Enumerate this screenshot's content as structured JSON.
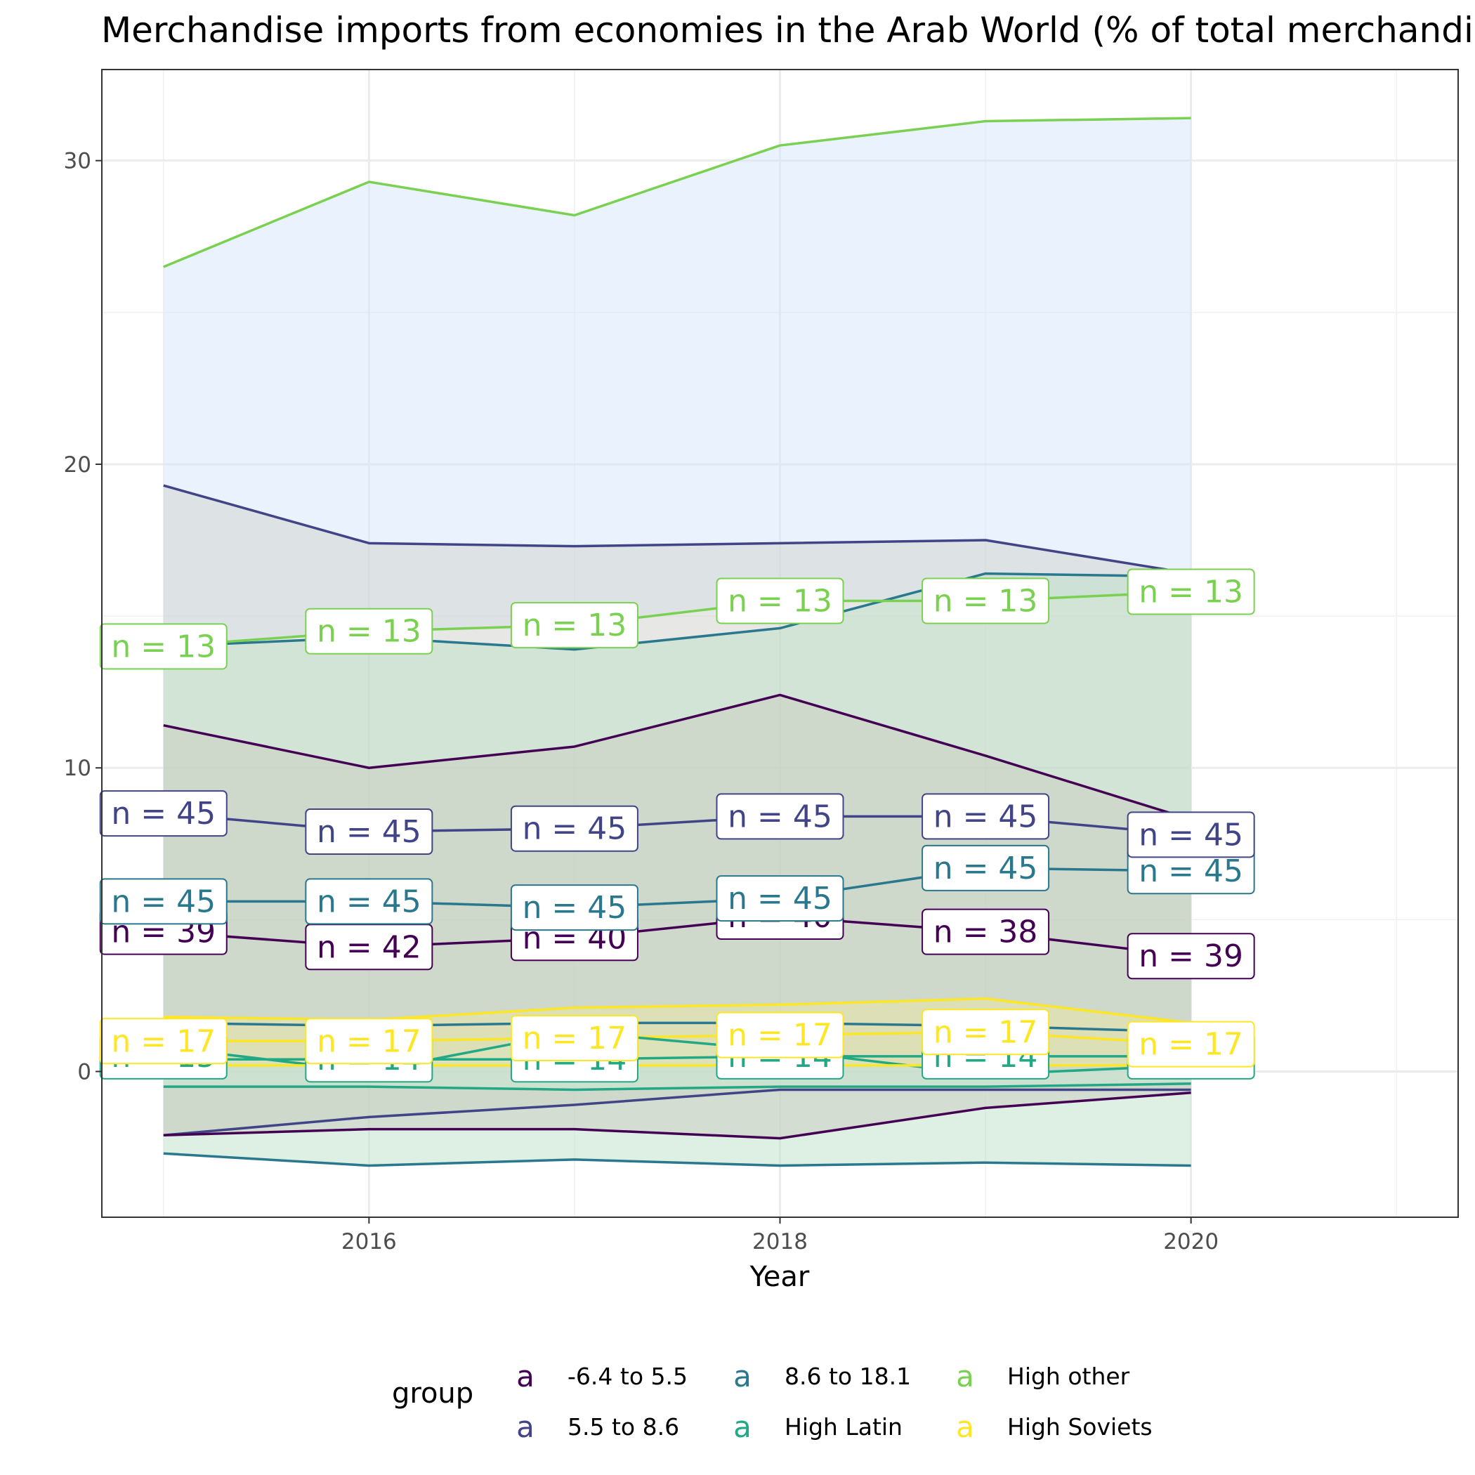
{
  "chart_data": {
    "type": "line",
    "title": "Merchandise imports from economies in the Arab World (% of total merchandise imports)",
    "xlabel": "Year",
    "ylabel": "",
    "x": [
      2015,
      2016,
      2017,
      2018,
      2019,
      2020
    ],
    "xlim": [
      2014.7,
      2021.3
    ],
    "ylim": [
      -4.8,
      33.0
    ],
    "x_ticks": [
      2016,
      2018,
      2020
    ],
    "y_ticks": [
      0,
      10,
      20,
      30
    ],
    "grid": true,
    "legend": {
      "title": "group",
      "position": "bottom",
      "key_glyph": "a",
      "entries": [
        "-6.4 to 5.5",
        "5.5 to 8.6",
        "8.6 to 18.1",
        "High Latin",
        "High other",
        "High Soviets"
      ]
    },
    "bands": [
      {
        "group": "High other",
        "fill": "#d6e6fb",
        "upper": [
          26.5,
          29.3,
          28.2,
          30.5,
          31.3,
          31.4
        ],
        "lower": [
          14.0,
          14.5,
          14.7,
          15.5,
          15.5,
          15.8
        ]
      },
      {
        "group": "5.5 to 8.6",
        "fill": "#cfd2cc",
        "upper": [
          19.3,
          17.4,
          17.3,
          17.4,
          17.5,
          16.4
        ],
        "lower": [
          -2.1,
          -1.5,
          -1.1,
          -0.6,
          -0.6,
          -0.6
        ]
      },
      {
        "group": "8.6 to 18.1",
        "fill": "#bde0c8",
        "upper": [
          14.0,
          14.3,
          13.9,
          14.6,
          16.4,
          16.3
        ],
        "lower": [
          -2.7,
          -3.1,
          -2.9,
          -3.1,
          -3.0,
          -3.1
        ]
      },
      {
        "group": "-6.4 to 5.5",
        "fill": "#c9cbc0",
        "upper": [
          11.4,
          10.0,
          10.7,
          12.4,
          10.4,
          8.3
        ],
        "lower": [
          -2.1,
          -1.9,
          -1.9,
          -2.2,
          -1.2,
          -0.7
        ]
      },
      {
        "group": "High Latin",
        "fill": "#cbead8",
        "upper": [
          0.8,
          0.0,
          1.3,
          0.7,
          -0.1,
          0.2
        ],
        "lower": [
          -0.5,
          -0.5,
          -0.6,
          -0.5,
          -0.5,
          -0.4
        ]
      },
      {
        "group": "High Soviets",
        "fill": "#ece6a4",
        "upper": [
          1.8,
          1.7,
          2.1,
          2.2,
          2.4,
          1.6
        ],
        "lower": [
          0.2,
          0.2,
          0.2,
          0.2,
          0.2,
          0.2
        ]
      }
    ],
    "series": [
      {
        "name": "High other",
        "role": "upper",
        "color": "#7ad151",
        "values": [
          26.5,
          29.3,
          28.2,
          30.5,
          31.3,
          31.4
        ]
      },
      {
        "name": "5.5 to 8.6",
        "role": "upper",
        "color": "#414487",
        "values": [
          19.3,
          17.4,
          17.3,
          17.4,
          17.5,
          16.4
        ]
      },
      {
        "name": "8.6 to 18.1",
        "role": "upper",
        "color": "#2a788e",
        "values": [
          14.0,
          14.3,
          13.9,
          14.6,
          16.4,
          16.3
        ]
      },
      {
        "name": "High other",
        "role": "median",
        "color": "#7ad151",
        "values": [
          14.0,
          14.5,
          14.7,
          15.5,
          15.5,
          15.8
        ]
      },
      {
        "name": "-6.4 to 5.5",
        "role": "upper",
        "color": "#440154",
        "values": [
          11.4,
          10.0,
          10.7,
          12.4,
          10.4,
          8.3
        ]
      },
      {
        "name": "5.5 to 8.6",
        "role": "median",
        "color": "#414487",
        "values": [
          8.5,
          7.9,
          8.0,
          8.4,
          8.4,
          7.8
        ]
      },
      {
        "name": "8.6 to 18.1",
        "role": "median",
        "color": "#2a788e",
        "values": [
          5.6,
          5.6,
          5.4,
          5.7,
          6.7,
          6.6
        ]
      },
      {
        "name": "-6.4 to 5.5",
        "role": "median",
        "color": "#440154",
        "values": [
          4.6,
          4.1,
          4.4,
          5.1,
          4.6,
          3.8
        ]
      },
      {
        "name": "High Soviets",
        "role": "upper",
        "color": "#fde725",
        "values": [
          1.8,
          1.7,
          2.1,
          2.2,
          2.4,
          1.6
        ]
      },
      {
        "name": "8.6 to 18.1",
        "role": "inner",
        "color": "#2a788e",
        "values": [
          1.6,
          1.5,
          1.6,
          1.6,
          1.5,
          1.3
        ]
      },
      {
        "name": "High Soviets",
        "role": "median",
        "color": "#fde725",
        "values": [
          1.0,
          1.0,
          1.1,
          1.2,
          1.3,
          0.9
        ]
      },
      {
        "name": "High Latin",
        "role": "upper",
        "color": "#22a884",
        "values": [
          0.8,
          0.0,
          1.3,
          0.7,
          -0.1,
          0.2
        ]
      },
      {
        "name": "High Latin",
        "role": "median",
        "color": "#22a884",
        "values": [
          0.4,
          0.4,
          0.4,
          0.5,
          0.5,
          0.5
        ]
      },
      {
        "name": "High Soviets",
        "role": "lower",
        "color": "#fde725",
        "values": [
          0.2,
          0.2,
          0.2,
          0.2,
          0.2,
          0.2
        ]
      },
      {
        "name": "High Latin",
        "role": "lower",
        "color": "#22a884",
        "values": [
          -0.5,
          -0.5,
          -0.6,
          -0.5,
          -0.5,
          -0.4
        ]
      },
      {
        "name": "5.5 to 8.6",
        "role": "lower",
        "color": "#414487",
        "values": [
          -2.1,
          -1.5,
          -1.1,
          -0.6,
          -0.6,
          -0.6
        ]
      },
      {
        "name": "-6.4 to 5.5",
        "role": "lower",
        "color": "#440154",
        "values": [
          -2.1,
          -1.9,
          -1.9,
          -2.2,
          -1.2,
          -0.7
        ]
      },
      {
        "name": "8.6 to 18.1",
        "role": "lower",
        "color": "#2a788e",
        "values": [
          -2.7,
          -3.1,
          -2.9,
          -3.1,
          -3.0,
          -3.1
        ]
      }
    ],
    "count_labels": [
      {
        "group": "High Latin",
        "color": "#22a884",
        "y": [
          0.5,
          0.4,
          0.4,
          0.5,
          0.5,
          0.5
        ],
        "text": [
          "n = 15",
          "n = 14",
          "n = 14",
          "n = 14",
          "n = 14",
          "n = 14"
        ]
      },
      {
        "group": "-6.4 to 5.5",
        "color": "#440154",
        "y": [
          4.6,
          4.1,
          4.4,
          5.1,
          4.6,
          3.8
        ],
        "text": [
          "n = 39",
          "n = 42",
          "n = 40",
          "n = 40",
          "n = 38",
          "n = 39"
        ]
      },
      {
        "group": "8.6 to 18.1",
        "color": "#2a788e",
        "y": [
          5.6,
          5.6,
          5.4,
          5.7,
          6.7,
          6.6
        ],
        "text": [
          "n = 45",
          "n = 45",
          "n = 45",
          "n = 45",
          "n = 45",
          "n = 45"
        ]
      },
      {
        "group": "5.5 to 8.6",
        "color": "#414487",
        "y": [
          8.5,
          7.9,
          8.0,
          8.4,
          8.4,
          7.8
        ],
        "text": [
          "n = 45",
          "n = 45",
          "n = 45",
          "n = 45",
          "n = 45",
          "n = 45"
        ]
      },
      {
        "group": "High Soviets",
        "color": "#fde725",
        "y": [
          1.0,
          1.0,
          1.1,
          1.2,
          1.3,
          0.9
        ],
        "text": [
          "n = 17",
          "n = 17",
          "n = 17",
          "n = 17",
          "n = 17",
          "n = 17"
        ]
      },
      {
        "group": "High other",
        "color": "#7ad151",
        "y": [
          14.0,
          14.5,
          14.7,
          15.5,
          15.5,
          15.8
        ],
        "text": [
          "n = 13",
          "n = 13",
          "n = 13",
          "n = 13",
          "n = 13",
          "n = 13"
        ]
      }
    ],
    "colors": {
      "-6.4 to 5.5": "#440154",
      "5.5 to 8.6": "#414487",
      "8.6 to 18.1": "#2a788e",
      "High Latin": "#22a884",
      "High other": "#7ad151",
      "High Soviets": "#fde725"
    }
  }
}
